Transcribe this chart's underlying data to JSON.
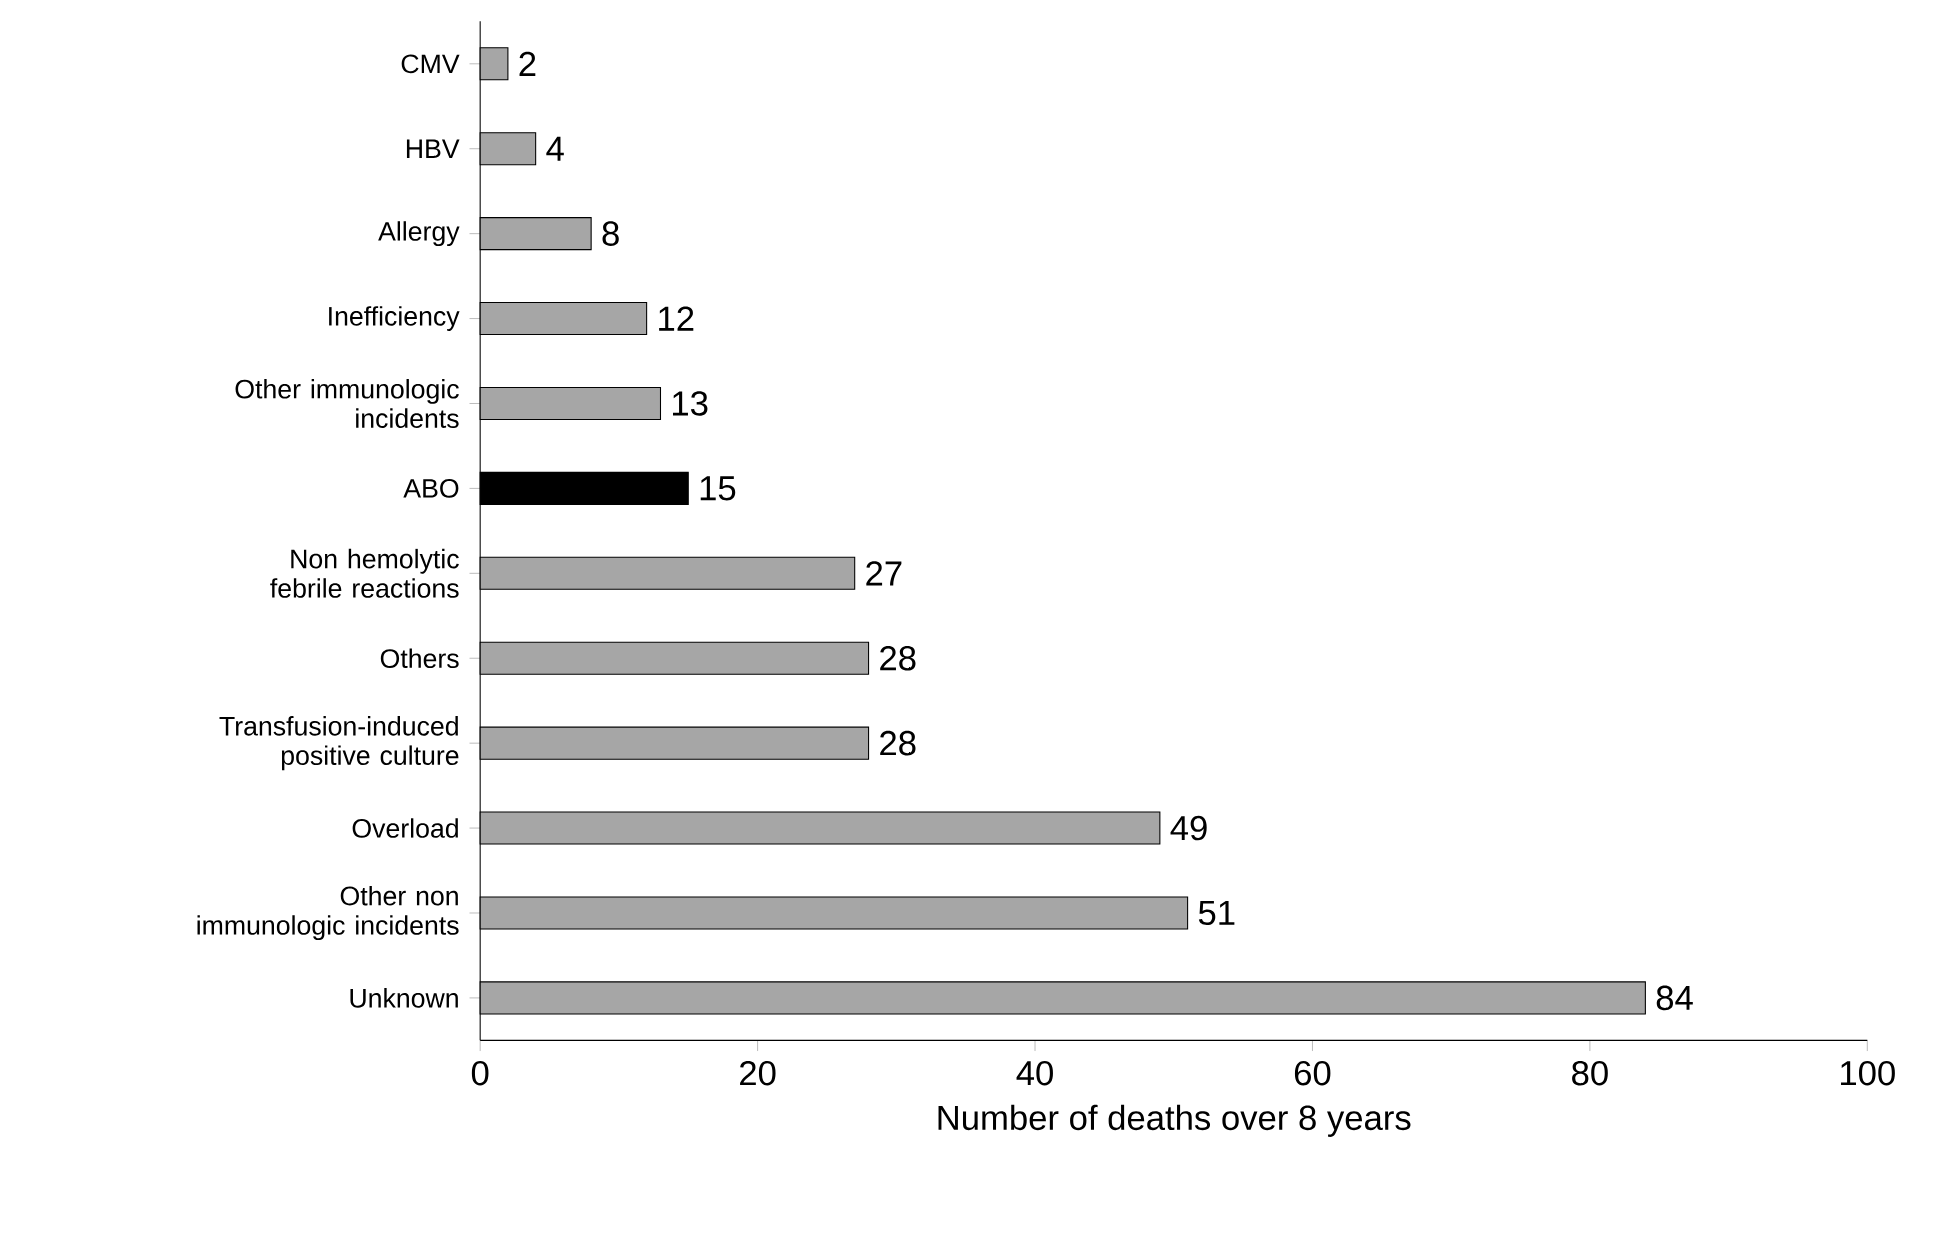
{
  "chart_data": {
    "type": "bar",
    "orientation": "horizontal",
    "xlabel": "Number of deaths over 8 years",
    "categories": [
      "CMV",
      "HBV",
      "Allergy",
      "Inefficiency",
      "Other immunologic incidents",
      "ABO",
      "Non hemolytic febrile reactions",
      "Others",
      "Transfusion-induced positive culture",
      "Overload",
      "Other non immunologic incidents",
      "Unknown"
    ],
    "values": [
      2,
      4,
      8,
      12,
      13,
      15,
      27,
      28,
      28,
      49,
      51,
      84
    ],
    "colors": [
      "#a6a6a6",
      "#a6a6a6",
      "#a6a6a6",
      "#a6a6a6",
      "#a6a6a6",
      "#000000",
      "#a6a6a6",
      "#a6a6a6",
      "#a6a6a6",
      "#a6a6a6",
      "#a6a6a6",
      "#a6a6a6"
    ],
    "xlim": [
      0,
      100
    ],
    "xticks": [
      0,
      20,
      40,
      60,
      80,
      100
    ],
    "data_labels": true,
    "grid": false
  }
}
